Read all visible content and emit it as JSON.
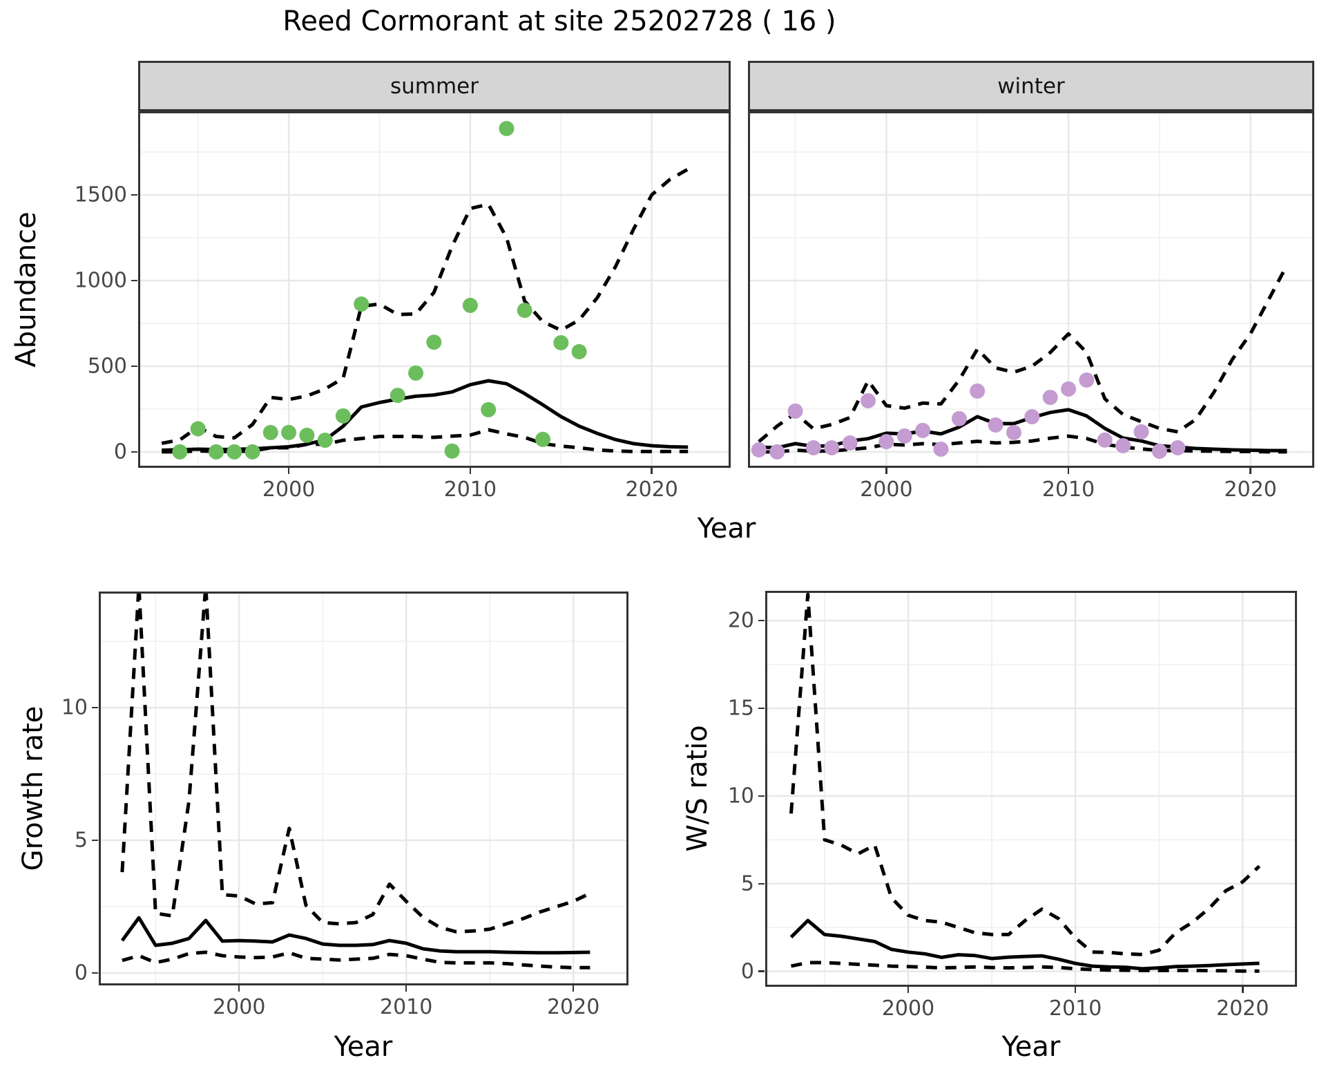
{
  "title": "Reed Cormorant at site 25202728 ( 16 )",
  "colors": {
    "point_green": "#6cbe5d",
    "point_purple": "#c49cd1",
    "strip_bg": "#d5d5d5",
    "panel_border": "#333333",
    "grid_major": "#e8e8e8",
    "grid_minor": "#f2f2f2",
    "line_black": "#000000",
    "tick_text": "#474747"
  },
  "chart_data": [
    {
      "id": "abundance-summer",
      "type": "line",
      "facet": "summer",
      "xlabel": "Year",
      "ylabel": "Abundance",
      "xlim": [
        1991.7,
        2024.35
      ],
      "ylim": [
        -93,
        1988
      ],
      "grid": true,
      "legend": "none",
      "axes": {
        "x": {
          "show_labels": true,
          "ticks": [
            {
              "v": 2000,
              "label": "2000"
            },
            {
              "v": 2010,
              "label": "2010"
            },
            {
              "v": 2020,
              "label": "2020"
            }
          ],
          "minor": [
            1995,
            2005,
            2015
          ]
        },
        "y": {
          "show_labels": true,
          "ticks": [
            {
              "v": 0,
              "label": "0"
            },
            {
              "v": 500,
              "label": "500"
            },
            {
              "v": 1000,
              "label": "1000"
            },
            {
              "v": 1500,
              "label": "1500"
            }
          ],
          "minor": [
            250,
            750,
            1250,
            1750
          ]
        }
      },
      "series": [
        {
          "name": "upper-ci",
          "style": "dashed",
          "x0": 1993,
          "y": [
            50,
            70,
            145,
            90,
            82,
            160,
            318,
            306,
            327,
            367,
            430,
            850,
            863,
            802,
            805,
            930,
            1200,
            1420,
            1445,
            1250,
            880,
            760,
            710,
            770,
            900,
            1080,
            1300,
            1500,
            1590,
            1650
          ]
        },
        {
          "name": "lower-ci",
          "style": "dashed",
          "x0": 1993,
          "y": [
            0,
            0,
            6,
            2,
            2,
            5,
            24,
            24,
            44,
            44,
            68,
            78,
            90,
            90,
            90,
            85,
            92,
            98,
            129,
            105,
            85,
            48,
            34,
            24,
            12,
            5,
            2,
            2,
            2,
            2
          ]
        },
        {
          "name": "fit",
          "style": "solid",
          "x0": 1993,
          "y": [
            10,
            13,
            16,
            14,
            15,
            18,
            24,
            30,
            45,
            70,
            150,
            262,
            288,
            308,
            325,
            332,
            350,
            392,
            415,
            398,
            340,
            275,
            206,
            150,
            108,
            72,
            48,
            36,
            30,
            28
          ]
        },
        {
          "name": "observed-counts",
          "style": "points",
          "color": "#6cbe5d",
          "x": [
            1994,
            1995,
            1996,
            1997,
            1998,
            1999,
            2000,
            2001,
            2002,
            2003,
            2004,
            2006,
            2007,
            2008,
            2009,
            2010,
            2011,
            2012,
            2013,
            2014,
            2015,
            2016
          ],
          "y": [
            0,
            135,
            0,
            0,
            0,
            113,
            113,
            97,
            68,
            210,
            863,
            330,
            460,
            640,
            5,
            855,
            246,
            1887,
            826,
            73,
            637,
            585
          ]
        }
      ]
    },
    {
      "id": "abundance-winter",
      "type": "line",
      "facet": "winter",
      "xlabel": "Year",
      "ylabel": "Abundance",
      "xlim": [
        1992.4,
        2023.5
      ],
      "ylim": [
        -93,
        1988
      ],
      "grid": true,
      "legend": "none",
      "axes": {
        "x": {
          "show_labels": true,
          "ticks": [
            {
              "v": 2000,
              "label": "2000"
            },
            {
              "v": 2010,
              "label": "2010"
            },
            {
              "v": 2020,
              "label": "2020"
            }
          ],
          "minor": [
            1995,
            2005,
            2015
          ]
        },
        "y": {
          "show_labels": false,
          "ticks": [
            {
              "v": 0,
              "label": "0"
            },
            {
              "v": 500,
              "label": "500"
            },
            {
              "v": 1000,
              "label": "1000"
            },
            {
              "v": 1500,
              "label": "1500"
            }
          ],
          "minor": [
            250,
            750,
            1250,
            1750
          ]
        }
      },
      "series": [
        {
          "name": "upper-ci",
          "style": "dashed",
          "x0": 1993,
          "y": [
            60,
            150,
            225,
            135,
            160,
            200,
            415,
            270,
            255,
            285,
            280,
            420,
            600,
            490,
            465,
            500,
            580,
            689,
            580,
            310,
            218,
            177,
            137,
            117,
            190,
            350,
            540,
            690,
            890,
            1090
          ]
        },
        {
          "name": "lower-ci",
          "style": "dashed",
          "x0": 1993,
          "y": [
            0,
            0,
            10,
            4,
            6,
            14,
            24,
            44,
            40,
            48,
            42,
            52,
            62,
            52,
            56,
            64,
            80,
            92,
            78,
            44,
            28,
            18,
            8,
            8,
            5,
            4,
            2,
            2,
            0,
            0
          ]
        },
        {
          "name": "fit",
          "style": "solid",
          "x0": 1993,
          "y": [
            28,
            24,
            48,
            32,
            36,
            64,
            77,
            109,
            105,
            121,
            105,
            145,
            206,
            165,
            165,
            200,
            230,
            246,
            210,
            137,
            81,
            64,
            36,
            28,
            20,
            16,
            12,
            10,
            8,
            8
          ]
        },
        {
          "name": "observed-counts",
          "style": "points",
          "color": "#c49cd1",
          "x": [
            1993,
            1994,
            1995,
            1996,
            1997,
            1998,
            1999,
            2000,
            2001,
            2002,
            2003,
            2004,
            2005,
            2006,
            2007,
            2008,
            2009,
            2010,
            2011,
            2012,
            2013,
            2014,
            2015,
            2016
          ],
          "y": [
            12,
            0,
            238,
            24,
            24,
            52,
            298,
            60,
            93,
            125,
            16,
            194,
            355,
            157,
            113,
            205,
            318,
            367,
            419,
            69,
            36,
            117,
            4,
            24
          ]
        }
      ]
    },
    {
      "id": "growth-rate",
      "type": "line",
      "facet": "",
      "xlabel": "Year",
      "ylabel": "Growth rate",
      "xlim": [
        1991.6,
        2023.3
      ],
      "ylim": [
        -0.47,
        14.38
      ],
      "grid": true,
      "legend": "none",
      "axes": {
        "x": {
          "show_labels": true,
          "ticks": [
            {
              "v": 2000,
              "label": "2000"
            },
            {
              "v": 2010,
              "label": "2010"
            },
            {
              "v": 2020,
              "label": "2020"
            }
          ],
          "minor": [
            1995,
            2005,
            2015
          ]
        },
        "y": {
          "show_labels": true,
          "ticks": [
            {
              "v": 0,
              "label": "0"
            },
            {
              "v": 5,
              "label": "5"
            },
            {
              "v": 10,
              "label": "10"
            }
          ],
          "minor": [
            2.5,
            7.5,
            12.5
          ]
        }
      },
      "series": [
        {
          "name": "upper-ci",
          "style": "dashed",
          "x0": 1993,
          "y": [
            3.8,
            14.6,
            2.25,
            2.15,
            6.5,
            14.6,
            2.95,
            2.9,
            2.6,
            2.65,
            5.45,
            2.55,
            1.9,
            1.85,
            1.9,
            2.2,
            3.35,
            2.7,
            2.1,
            1.72,
            1.55,
            1.58,
            1.65,
            1.85,
            2.05,
            2.3,
            2.5,
            2.7,
            3.0
          ]
        },
        {
          "name": "lower-ci",
          "style": "dashed",
          "x0": 1993,
          "y": [
            0.47,
            0.65,
            0.39,
            0.52,
            0.73,
            0.78,
            0.65,
            0.6,
            0.58,
            0.6,
            0.76,
            0.55,
            0.52,
            0.49,
            0.52,
            0.55,
            0.7,
            0.65,
            0.52,
            0.4,
            0.38,
            0.38,
            0.38,
            0.35,
            0.3,
            0.26,
            0.22,
            0.2,
            0.2
          ]
        },
        {
          "name": "fit",
          "style": "solid",
          "x0": 1993,
          "y": [
            1.22,
            2.08,
            1.04,
            1.12,
            1.3,
            1.98,
            1.2,
            1.22,
            1.2,
            1.17,
            1.43,
            1.3,
            1.09,
            1.04,
            1.04,
            1.07,
            1.22,
            1.12,
            0.91,
            0.83,
            0.8,
            0.8,
            0.8,
            0.78,
            0.77,
            0.76,
            0.76,
            0.77,
            0.78
          ]
        }
      ]
    },
    {
      "id": "ws-ratio",
      "type": "line",
      "facet": "",
      "xlabel": "Year",
      "ylabel": "W/S ratio",
      "xlim": [
        1991.45,
        2023.25
      ],
      "ylim": [
        -0.88,
        21.7
      ],
      "grid": true,
      "legend": "none",
      "axes": {
        "x": {
          "show_labels": true,
          "ticks": [
            {
              "v": 2000,
              "label": "2000"
            },
            {
              "v": 2010,
              "label": "2010"
            },
            {
              "v": 2020,
              "label": "2020"
            }
          ],
          "minor": [
            1995,
            2005,
            2015
          ]
        },
        "y": {
          "show_labels": true,
          "ticks": [
            {
              "v": 0,
              "label": "0"
            },
            {
              "v": 5,
              "label": "5"
            },
            {
              "v": 10,
              "label": "10"
            },
            {
              "v": 15,
              "label": "15"
            },
            {
              "v": 20,
              "label": "20"
            }
          ],
          "minor": [
            2.5,
            7.5,
            12.5,
            17.5
          ]
        }
      },
      "series": [
        {
          "name": "upper-ci",
          "style": "dashed",
          "x0": 1993,
          "y": [
            9.0,
            21.5,
            7.5,
            7.2,
            6.7,
            7.2,
            4.2,
            3.2,
            2.9,
            2.8,
            2.5,
            2.2,
            2.1,
            2.1,
            2.9,
            3.55,
            3.0,
            1.9,
            1.1,
            1.08,
            1.0,
            0.96,
            1.2,
            2.2,
            2.8,
            3.6,
            4.6,
            5.1,
            6.0
          ]
        },
        {
          "name": "lower-ci",
          "style": "dashed",
          "x0": 1993,
          "y": [
            0.3,
            0.5,
            0.5,
            0.45,
            0.4,
            0.35,
            0.3,
            0.27,
            0.24,
            0.2,
            0.22,
            0.25,
            0.22,
            0.2,
            0.22,
            0.25,
            0.22,
            0.15,
            0.1,
            0.07,
            0.06,
            0.05,
            0.05,
            0.05,
            0.05,
            0.04,
            0.03,
            0.02,
            0.02
          ]
        },
        {
          "name": "fit",
          "style": "solid",
          "x0": 1993,
          "y": [
            1.95,
            2.9,
            2.1,
            2.0,
            1.85,
            1.7,
            1.25,
            1.1,
            1.0,
            0.8,
            0.95,
            0.9,
            0.73,
            0.81,
            0.85,
            0.88,
            0.69,
            0.45,
            0.3,
            0.25,
            0.23,
            0.15,
            0.2,
            0.27,
            0.3,
            0.33,
            0.38,
            0.42,
            0.46
          ]
        }
      ]
    }
  ]
}
